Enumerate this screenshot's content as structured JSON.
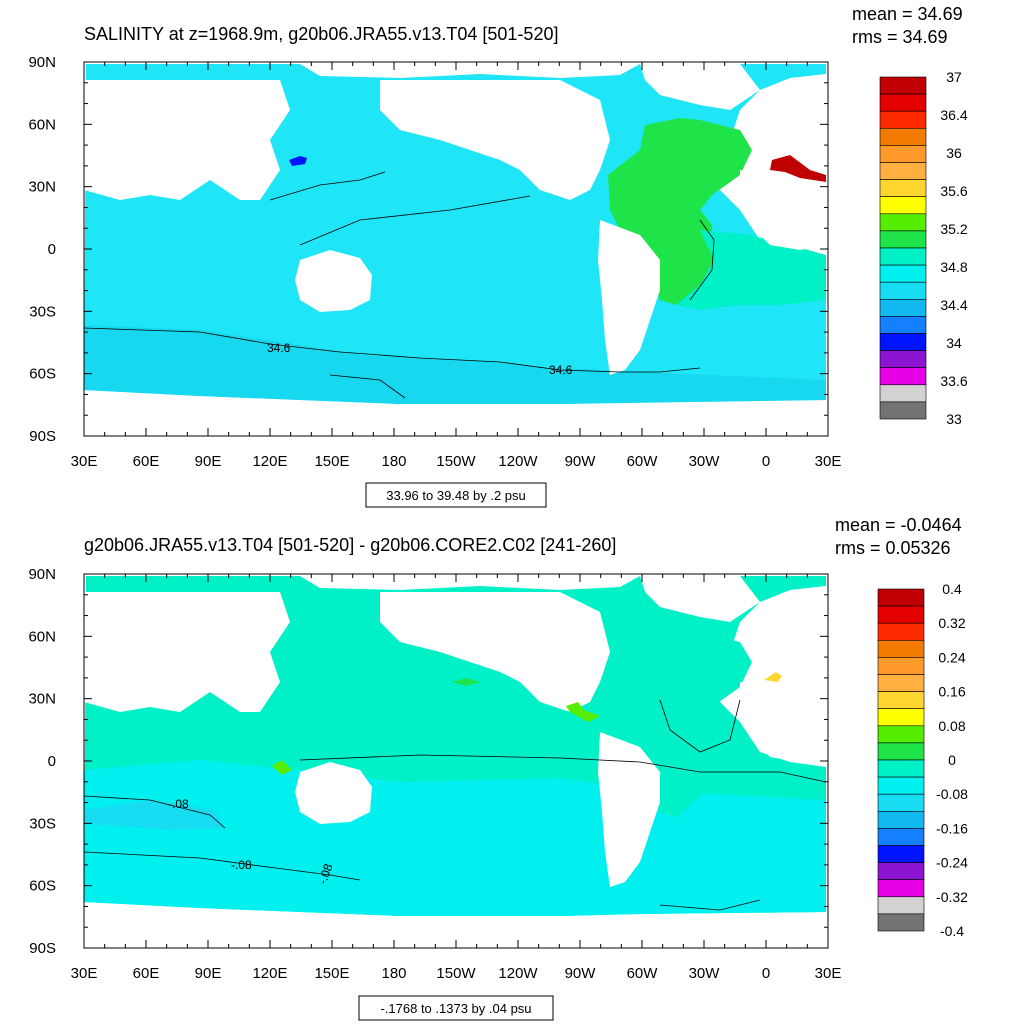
{
  "panels": [
    {
      "title": "SALINITY at z=1968.9m, g20b06.JRA55.v13.T04 [501-520]",
      "mean": "mean = 34.69",
      "rms": "rms = 34.69",
      "range_note": "33.96 to 39.48 by .2 psu",
      "lat_ticks": [
        "90N",
        "60N",
        "30N",
        "0",
        "30S",
        "60S",
        "90S"
      ],
      "lon_ticks": [
        "30E",
        "60E",
        "90E",
        "120E",
        "150E",
        "180",
        "150W",
        "120W",
        "90W",
        "60W",
        "30W",
        "0",
        "30E"
      ],
      "colorbar_labels": [
        "37",
        "36.4",
        "36",
        "35.6",
        "35.2",
        "34.8",
        "34.4",
        "34",
        "33.6",
        "33"
      ],
      "colorbar_colors": [
        "#c00000",
        "#e40000",
        "#ff2a00",
        "#f27a00",
        "#ff9a2a",
        "#ffb040",
        "#ffd630",
        "#ffff00",
        "#55ee00",
        "#1ee44a",
        "#00f0c8",
        "#00f0f0",
        "#18dcf2",
        "#12b8f0",
        "#1480ff",
        "#0014ff",
        "#8c14d2",
        "#e600e6",
        "#d2d2d2",
        "#737373"
      ],
      "contour_labels": [
        "34.6",
        "34.6"
      ],
      "ocean_color": "#1ee6f6",
      "south_color": "#18d8f0",
      "atlantic_color": "#1ee44a",
      "south_atlantic_color": "#00f0c8"
    },
    {
      "title": "g20b06.JRA55.v13.T04 [501-520] - g20b06.CORE2.C02 [241-260]",
      "mean": "mean = -0.0464",
      "rms": "rms = 0.05326",
      "range_note": "-.1768 to .1373 by .04 psu",
      "lat_ticks": [
        "90N",
        "60N",
        "30N",
        "0",
        "30S",
        "60S",
        "90S"
      ],
      "lon_ticks": [
        "30E",
        "60E",
        "90E",
        "120E",
        "150E",
        "180",
        "150W",
        "120W",
        "90W",
        "60W",
        "30W",
        "0",
        "30E"
      ],
      "colorbar_labels": [
        "0.4",
        "0.32",
        "0.24",
        "0.16",
        "0.08",
        "0",
        "-0.08",
        "-0.16",
        "-0.24",
        "-0.32",
        "-0.4"
      ],
      "colorbar_colors": [
        "#c00000",
        "#e40000",
        "#ff2a00",
        "#f27a00",
        "#ff9a2a",
        "#ffb040",
        "#ffd630",
        "#ffff00",
        "#55ee00",
        "#1ee44a",
        "#00f0c8",
        "#00f0f0",
        "#18dcf2",
        "#12b8f0",
        "#1480ff",
        "#0014ff",
        "#8c14d2",
        "#e600e6",
        "#d2d2d2",
        "#737373"
      ],
      "contour_labels": [
        "-.08",
        "-.08",
        "-.08"
      ],
      "ocean_color": "#00f0c8",
      "south_color": "#00f0f0",
      "atlantic_color": "#00f0c8",
      "south_atlantic_color": "#18dcf2"
    }
  ]
}
